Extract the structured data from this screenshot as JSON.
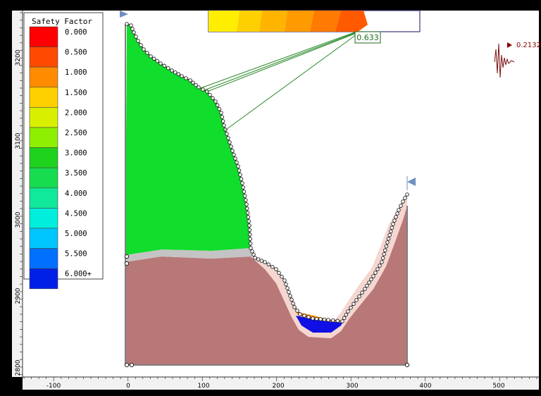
{
  "legend": {
    "title": "Safety Factor",
    "entries": [
      {
        "label": "0.000",
        "color": "#ff0000"
      },
      {
        "label": "0.500",
        "color": "#ff4a00"
      },
      {
        "label": "1.000",
        "color": "#ff8c00"
      },
      {
        "label": "1.500",
        "color": "#ffd000"
      },
      {
        "label": "2.000",
        "color": "#d8f000"
      },
      {
        "label": "2.500",
        "color": "#8ef000"
      },
      {
        "label": "3.000",
        "color": "#1ed21e"
      },
      {
        "label": "3.500",
        "color": "#18dc50"
      },
      {
        "label": "4.000",
        "color": "#10e89a"
      },
      {
        "label": "4.500",
        "color": "#00eedc"
      },
      {
        "label": "5.000",
        "color": "#00c6ff"
      },
      {
        "label": "5.500",
        "color": "#0070ff"
      },
      {
        "label": "6.000+",
        "color": "#0020e8"
      }
    ]
  },
  "min_factor_label": "0.633",
  "seismic_label": "0.2132",
  "x_axis": {
    "ticks": [
      "-100",
      "0",
      "100",
      "200",
      "300",
      "400",
      "500"
    ]
  },
  "y_axis": {
    "ticks": [
      "3200",
      "3100",
      "3000",
      "2900",
      "2800"
    ]
  },
  "colors": {
    "slope_green": "#10dd2c",
    "bedrock": "#b87878",
    "weak_layer": "#c6c6c6",
    "pink_band": "#f6d6d0",
    "critical_blue": "#0f0fe6"
  }
}
